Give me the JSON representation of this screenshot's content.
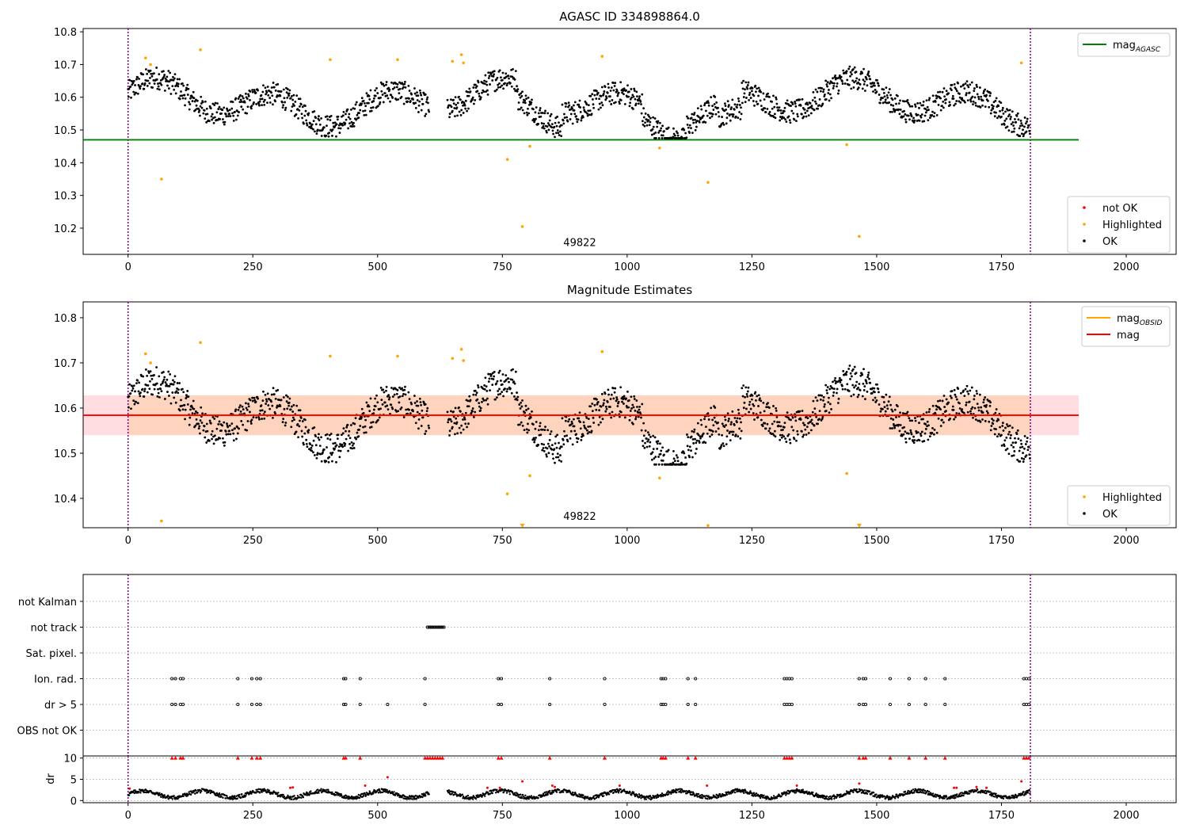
{
  "colors": {
    "ok": "#000000",
    "not_ok": "#ff0000",
    "highlighted": "#ffa500",
    "agasc_line": "#008000",
    "obsid_line": "#ffa500",
    "mag_line": "#ff0000",
    "band_fill": "#ffb3b3",
    "vline": "#800080",
    "grid": "#b0b0b0"
  },
  "chart_data": [
    {
      "type": "scatter",
      "title": "AGASC ID 334898864.0",
      "xlim": [
        -90,
        2100
      ],
      "ylim": [
        10.12,
        10.81
      ],
      "xticks": [
        0,
        250,
        500,
        750,
        1000,
        1250,
        1500,
        1750,
        2000
      ],
      "yticks": [
        10.2,
        10.3,
        10.4,
        10.5,
        10.6,
        10.7,
        10.8
      ],
      "hline": {
        "name": "mag",
        "subscript": "AGASC",
        "y": 10.47,
        "x_range": [
          -90,
          1905
        ]
      },
      "vlines": [
        0,
        1808
      ],
      "annotation": {
        "text": "49822",
        "x": 905,
        "y": 10.155
      },
      "legend_top": [
        {
          "label": "mag",
          "subscript": "AGASC",
          "kind": "line",
          "color": "#008000"
        }
      ],
      "legend_bottom": [
        {
          "label": "not OK",
          "kind": "marker",
          "color": "#ff0000"
        },
        {
          "label": "Highlighted",
          "kind": "marker",
          "color": "#ffa500"
        },
        {
          "label": "OK",
          "kind": "marker",
          "color": "#000000"
        }
      ],
      "series_ok_note": "dense black points ~1800 observations between x=0 and x=1808, y≈10.47–10.70",
      "highlighted": [
        [
          35,
          10.72
        ],
        [
          45,
          10.7
        ],
        [
          67,
          10.35
        ],
        [
          145,
          10.745
        ],
        [
          405,
          10.715
        ],
        [
          540,
          10.715
        ],
        [
          650,
          10.71
        ],
        [
          668,
          10.73
        ],
        [
          672,
          10.705
        ],
        [
          760,
          10.41
        ],
        [
          790,
          10.205
        ],
        [
          805,
          10.45
        ],
        [
          950,
          10.725
        ],
        [
          1065,
          10.445
        ],
        [
          1162,
          10.34
        ],
        [
          1440,
          10.455
        ],
        [
          1465,
          10.175
        ],
        [
          1790,
          10.705
        ]
      ]
    },
    {
      "type": "scatter",
      "title": "Magnitude Estimates",
      "xlim": [
        -90,
        2100
      ],
      "ylim": [
        10.335,
        10.835
      ],
      "xticks": [
        0,
        250,
        500,
        750,
        1000,
        1250,
        1500,
        1750,
        2000
      ],
      "yticks": [
        10.4,
        10.5,
        10.6,
        10.7,
        10.8
      ],
      "band": {
        "low": 10.54,
        "high": 10.628,
        "x_range": [
          -90,
          1905
        ]
      },
      "mag_line": {
        "y": 10.584
      },
      "vlines": [
        0,
        1808
      ],
      "annotation": {
        "text": "49822",
        "x": 905,
        "y": 10.345
      },
      "legend_top": [
        {
          "label": "mag",
          "subscript": "OBSID",
          "kind": "line",
          "color": "#ffa500"
        },
        {
          "label": "mag",
          "subscript": "",
          "kind": "line",
          "color": "#ff0000"
        }
      ],
      "legend_bottom": [
        {
          "label": "Highlighted",
          "kind": "marker",
          "color": "#ffa500"
        },
        {
          "label": "OK",
          "kind": "marker",
          "color": "#000000"
        }
      ],
      "highlighted": [
        [
          35,
          10.72
        ],
        [
          45,
          10.7
        ],
        [
          67,
          10.35
        ],
        [
          145,
          10.745
        ],
        [
          405,
          10.715
        ],
        [
          540,
          10.715
        ],
        [
          650,
          10.71
        ],
        [
          668,
          10.73
        ],
        [
          672,
          10.705
        ],
        [
          760,
          10.41
        ],
        [
          805,
          10.45
        ],
        [
          950,
          10.725
        ],
        [
          1065,
          10.445
        ],
        [
          1162,
          10.34
        ],
        [
          1440,
          10.455
        ]
      ],
      "offscale_markers": [
        790,
        1465
      ]
    },
    {
      "type": "scatter",
      "title": "",
      "xlim": [
        -90,
        2100
      ],
      "categories": [
        "not Kalman",
        "not track",
        "Sat. pixel.",
        "Ion. rad.",
        "dr > 5",
        "OBS not OK"
      ],
      "vlines": [
        0,
        1808
      ],
      "flags": {
        "not track": [
          600,
          603,
          606,
          609,
          612,
          615,
          618,
          621,
          624,
          627,
          630,
          633
        ],
        "Ion. rad.": [
          88,
          95,
          105,
          110,
          220,
          248,
          258,
          265,
          432,
          436,
          465,
          595,
          742,
          748,
          845,
          955,
          1068,
          1072,
          1077,
          1122,
          1137,
          1315,
          1320,
          1325,
          1330,
          1465,
          1473,
          1478,
          1527,
          1565,
          1598,
          1637,
          1795,
          1800,
          1805
        ],
        "dr > 5": [
          88,
          95,
          105,
          110,
          220,
          248,
          258,
          265,
          432,
          436,
          465,
          520,
          595,
          742,
          748,
          845,
          955,
          1068,
          1072,
          1077,
          1122,
          1137,
          1315,
          1320,
          1325,
          1330,
          1465,
          1473,
          1478,
          1527,
          1565,
          1598,
          1637,
          1795,
          1800,
          1805
        ]
      }
    },
    {
      "type": "scatter",
      "title": "",
      "xlim": [
        -90,
        2100
      ],
      "ylabel": "dr",
      "ylim": [
        -0.5,
        10.5
      ],
      "yticks": [
        0,
        5,
        10
      ],
      "clipped_red_at_10": [
        88,
        95,
        105,
        110,
        220,
        248,
        258,
        265,
        432,
        436,
        465,
        595,
        600,
        605,
        610,
        615,
        620,
        625,
        630,
        742,
        748,
        845,
        955,
        1068,
        1072,
        1077,
        1122,
        1137,
        1315,
        1320,
        1325,
        1330,
        1465,
        1473,
        1478,
        1527,
        1565,
        1598,
        1637,
        1795,
        1800,
        1805
      ],
      "red_outliers": [
        [
          3,
          2.8
        ],
        [
          325,
          3.0
        ],
        [
          330,
          3.1
        ],
        [
          475,
          3.5
        ],
        [
          520,
          5.5
        ],
        [
          720,
          3.0
        ],
        [
          745,
          3.0
        ],
        [
          790,
          4.5
        ],
        [
          850,
          3.5
        ],
        [
          855,
          3.2
        ],
        [
          985,
          3.5
        ],
        [
          1160,
          3.5
        ],
        [
          1340,
          3.5
        ],
        [
          1465,
          4.0
        ],
        [
          1655,
          3.0
        ],
        [
          1660,
          3.0
        ],
        [
          1700,
          3.2
        ],
        [
          1720,
          3.0
        ],
        [
          1790,
          4.5
        ]
      ]
    }
  ]
}
